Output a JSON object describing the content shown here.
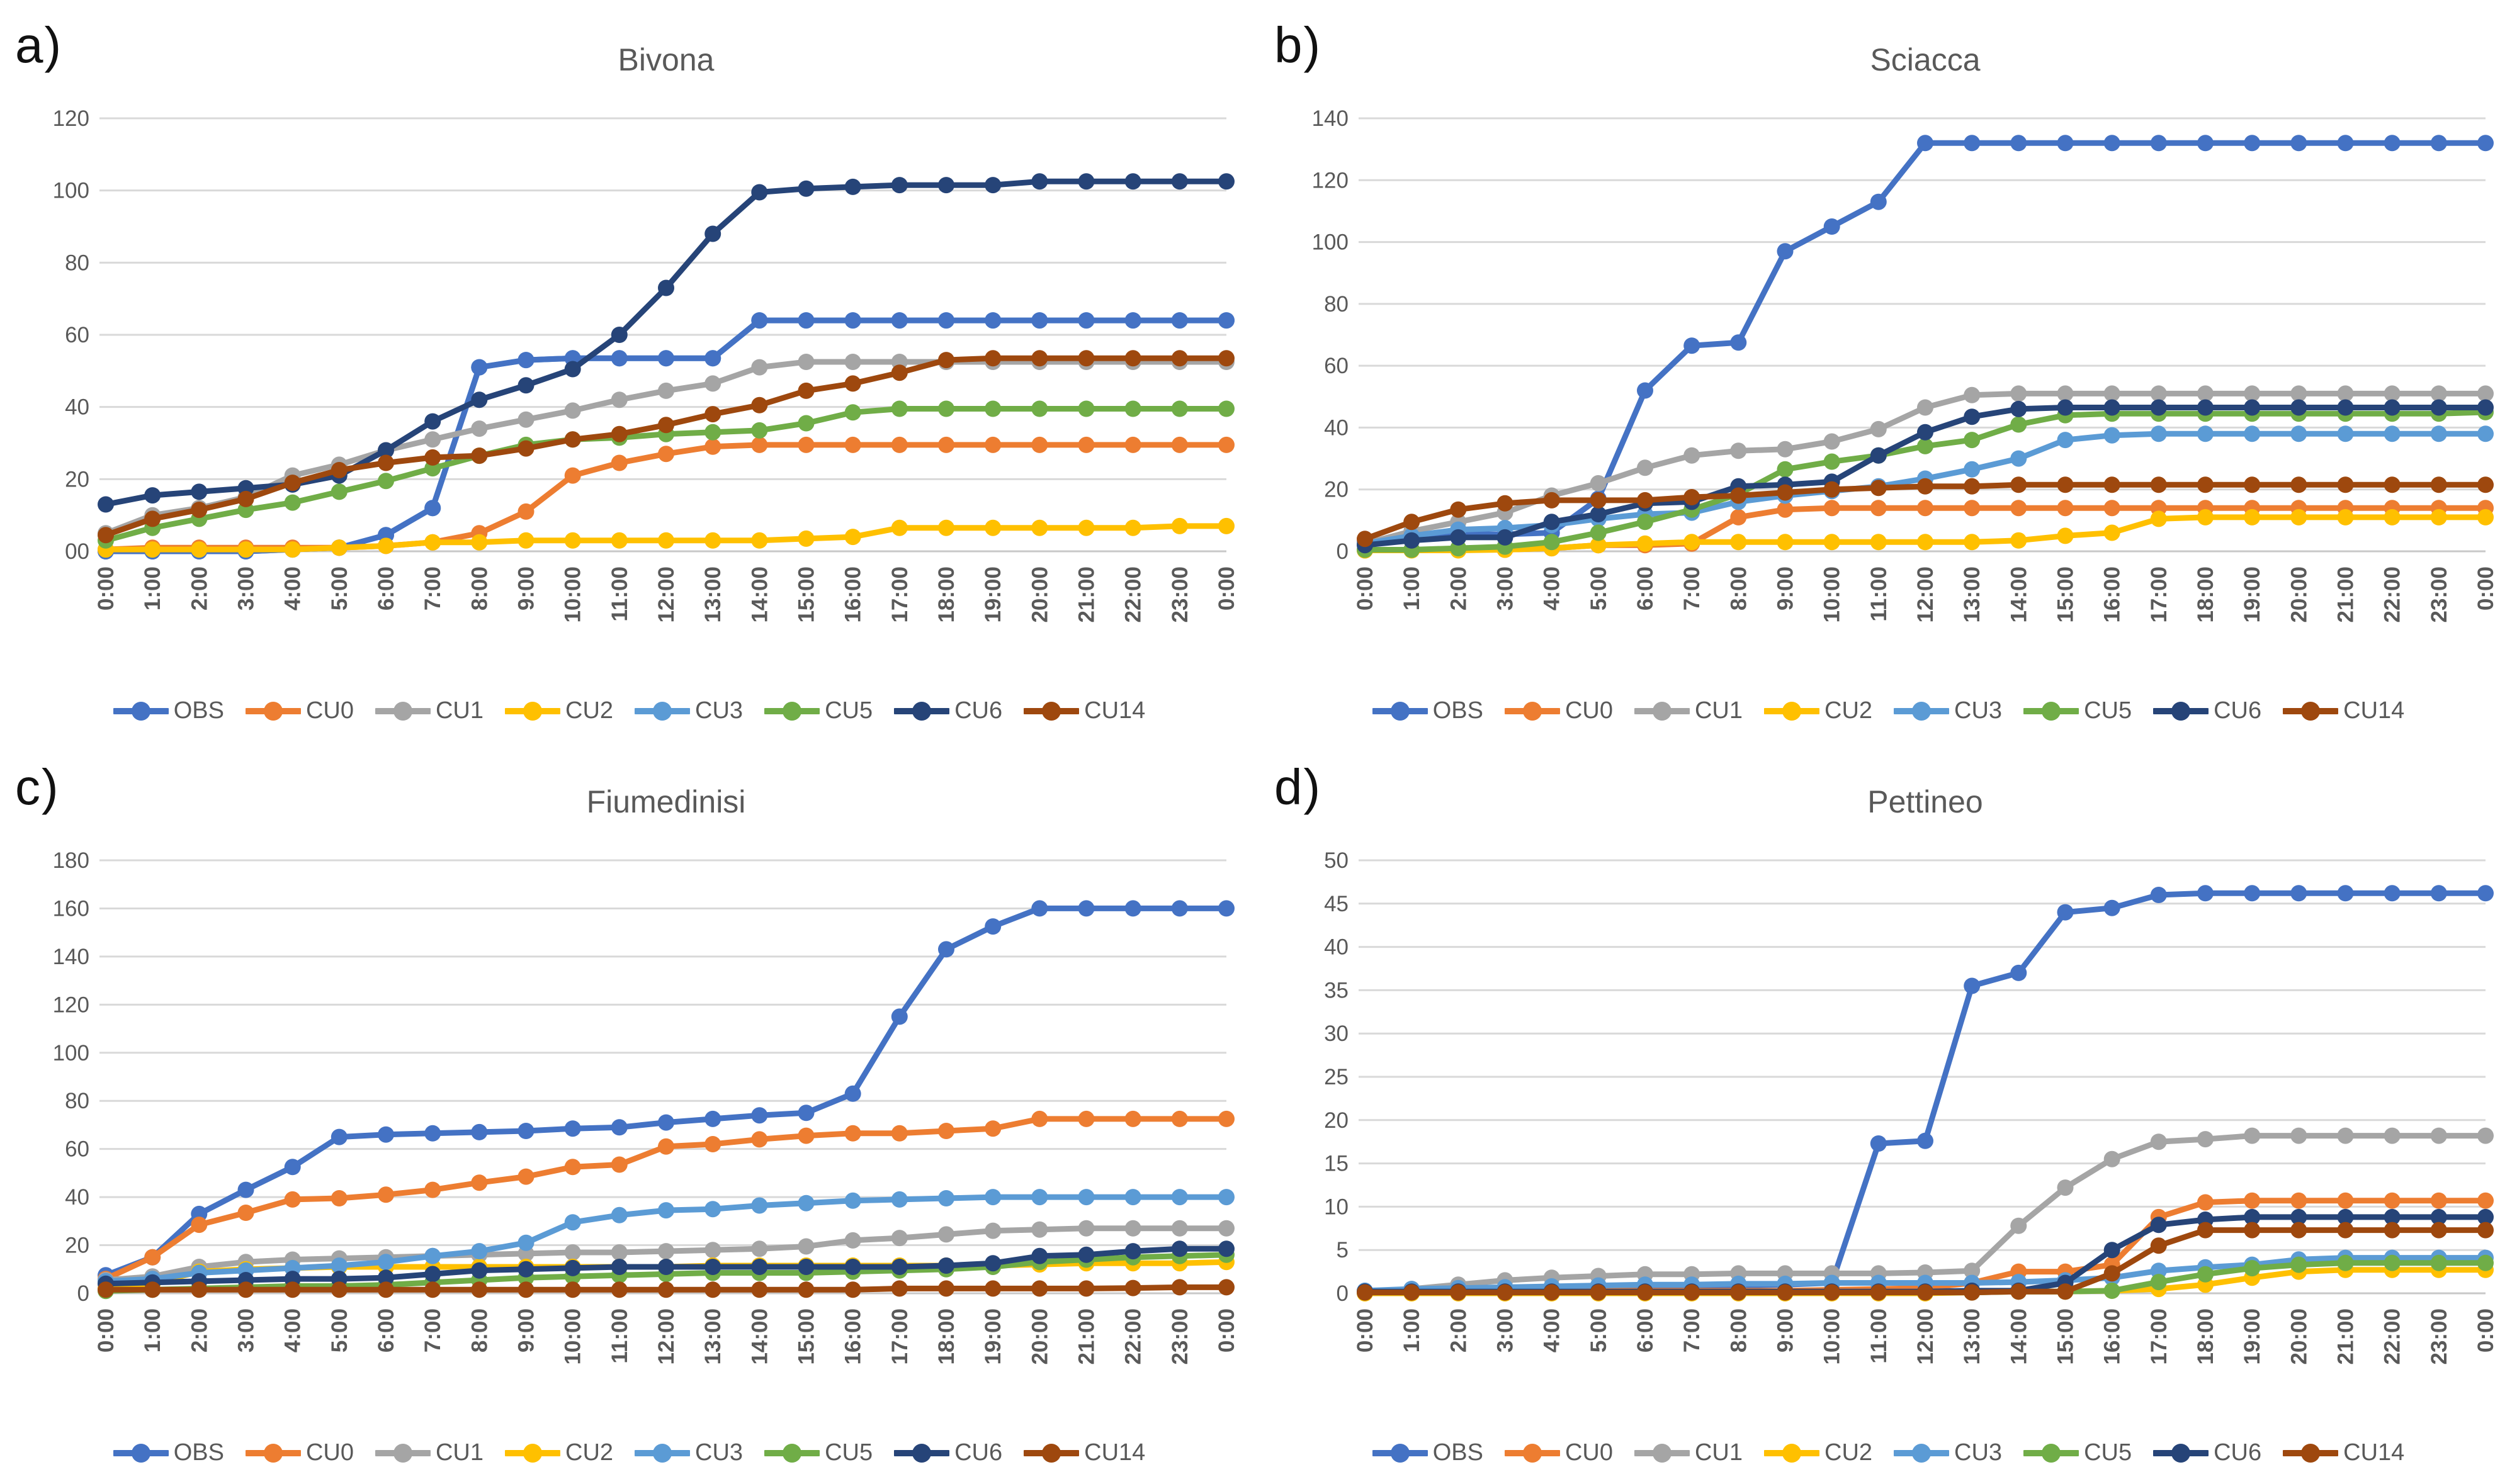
{
  "figure": {
    "background": "#FFFFFF"
  },
  "series_meta": [
    {
      "key": "OBS",
      "label": "OBS",
      "color": "#4472C4"
    },
    {
      "key": "CU0",
      "label": "CU0",
      "color": "#ED7D31"
    },
    {
      "key": "CU1",
      "label": "CU1",
      "color": "#A5A5A5"
    },
    {
      "key": "CU2",
      "label": "CU2",
      "color": "#FFC000"
    },
    {
      "key": "CU3",
      "label": "CU3",
      "color": "#5B9BD5"
    },
    {
      "key": "CU5",
      "label": "CU5",
      "color": "#70AD47"
    },
    {
      "key": "CU6",
      "label": "CU6",
      "color": "#264478"
    },
    {
      "key": "CU14",
      "label": "CU14",
      "color": "#9E480E"
    }
  ],
  "chart_data": [
    {
      "panel_label": "a)",
      "title": "Bivona",
      "type": "line",
      "grid": "horizontal",
      "legend_position": "bottom",
      "x_labels": [
        "0:00",
        "1:00",
        "2:00",
        "3:00",
        "4:00",
        "5:00",
        "6:00",
        "7:00",
        "8:00",
        "9:00",
        "10:00",
        "11:00",
        "12:00",
        "13:00",
        "14:00",
        "15:00",
        "16:00",
        "17:00",
        "18:00",
        "19:00",
        "20:00",
        "21:00",
        "22:00",
        "23:00",
        "0:00"
      ],
      "y_tick_labels": [
        "00",
        "20",
        "40",
        "60",
        "80",
        "100",
        "120"
      ],
      "ylim": [
        0,
        120
      ],
      "draw_order": [
        "CU3",
        "OBS",
        "CU0",
        "CU1",
        "CU2",
        "CU5",
        "CU6",
        "CU14"
      ],
      "series": {
        "OBS": [
          0,
          0,
          0,
          0,
          0.5,
          1,
          4.5,
          12,
          51,
          53,
          53.5,
          53.5,
          53.5,
          53.5,
          64,
          64,
          64,
          64,
          64,
          64,
          64,
          64,
          64,
          64,
          64
        ],
        "CU0": [
          0.5,
          1,
          1,
          1,
          1,
          1,
          1.5,
          2.5,
          5,
          11,
          21,
          24.5,
          27,
          29,
          29.5,
          29.5,
          29.5,
          29.5,
          29.5,
          29.5,
          29.5,
          29.5,
          29.5,
          29.5,
          29.5
        ],
        "CU1": [
          5,
          10,
          12,
          15,
          21,
          24,
          28,
          31,
          34,
          36.5,
          39,
          42,
          44.5,
          46.5,
          51,
          52.5,
          52.5,
          52.5,
          52.5,
          52.5,
          52.5,
          52.5,
          52.5,
          52.5,
          52.5
        ],
        "CU2": [
          0.5,
          0.5,
          0.5,
          0.5,
          0.5,
          1,
          1.5,
          2.5,
          2.5,
          3,
          3,
          3,
          3,
          3,
          3,
          3.5,
          4,
          6.5,
          6.5,
          6.5,
          6.5,
          6.5,
          6.5,
          7,
          7
        ],
        "CU3": [
          0,
          0,
          0,
          0,
          0.5,
          1,
          4.5,
          12,
          51,
          53,
          53.5,
          53.5,
          53.5,
          53.5,
          64,
          64,
          64,
          64,
          64,
          64,
          64,
          64,
          64,
          64,
          64
        ],
        "CU5": [
          3,
          6.5,
          9,
          11.5,
          13.5,
          16.5,
          19.5,
          23,
          26.5,
          29.5,
          31,
          31.5,
          32.5,
          33,
          33.5,
          35.5,
          38.5,
          39.5,
          39.5,
          39.5,
          39.5,
          39.5,
          39.5,
          39.5,
          39.5
        ],
        "CU6": [
          13,
          15.5,
          16.5,
          17.5,
          18.5,
          21,
          28,
          36,
          42,
          46,
          50.5,
          60,
          73,
          88,
          99.5,
          100.5,
          101,
          101.5,
          101.5,
          101.5,
          102.5,
          102.5,
          102.5,
          102.5,
          102.5
        ],
        "CU14": [
          4.5,
          9,
          11.5,
          14.5,
          19,
          22.5,
          24.5,
          26,
          26.5,
          28.5,
          31,
          32.5,
          35,
          38,
          40.5,
          44.5,
          46.5,
          49.5,
          53,
          53.5,
          53.5,
          53.5,
          53.5,
          53.5,
          53.5
        ]
      }
    },
    {
      "panel_label": "b)",
      "title": "Sciacca",
      "type": "line",
      "grid": "horizontal",
      "legend_position": "bottom",
      "x_labels": [
        "0:00",
        "1:00",
        "2:00",
        "3:00",
        "4:00",
        "5:00",
        "6:00",
        "7:00",
        "8:00",
        "9:00",
        "10:00",
        "11:00",
        "12:00",
        "13:00",
        "14:00",
        "15:00",
        "16:00",
        "17:00",
        "18:00",
        "19:00",
        "20:00",
        "21:00",
        "22:00",
        "23:00",
        "0:00"
      ],
      "y_tick_labels": [
        "0",
        "20",
        "40",
        "60",
        "80",
        "100",
        "120",
        "140"
      ],
      "ylim": [
        0,
        140
      ],
      "draw_order": [
        "OBS",
        "CU0",
        "CU1",
        "CU2",
        "CU3",
        "CU5",
        "CU6",
        "CU14"
      ],
      "series": {
        "OBS": [
          3,
          4,
          5.5,
          5.5,
          6,
          17,
          52,
          66.5,
          67.5,
          97,
          105,
          113,
          132,
          132,
          132,
          132,
          132,
          132,
          132,
          132,
          132,
          132,
          132,
          132,
          132
        ],
        "CU0": [
          0.3,
          0.5,
          0.5,
          0.5,
          1,
          2,
          2,
          2.5,
          11,
          13.5,
          14,
          14,
          14,
          14,
          14,
          14,
          14,
          14,
          14,
          14,
          14,
          14,
          14,
          14,
          14
        ],
        "CU1": [
          2.5,
          6.5,
          9.5,
          12.5,
          18,
          22,
          27,
          31,
          32.5,
          33,
          35.5,
          39.5,
          46.5,
          50.5,
          51,
          51,
          51,
          51,
          51,
          51,
          51,
          51,
          51,
          51,
          51
        ],
        "CU2": [
          0.3,
          0.3,
          0.3,
          0.5,
          1,
          2,
          2.5,
          3,
          3,
          3,
          3,
          3,
          3,
          3,
          3.5,
          5,
          6,
          10.5,
          11,
          11,
          11,
          11,
          11,
          11,
          11
        ],
        "CU3": [
          2.5,
          5,
          7,
          7.5,
          8.5,
          10.5,
          12,
          12.5,
          16,
          18,
          19.5,
          21,
          23.5,
          26.5,
          30,
          36,
          37.5,
          38,
          38,
          38,
          38,
          38,
          38,
          38,
          38
        ],
        "CU5": [
          0.5,
          0.5,
          1,
          1.5,
          3,
          6,
          9.5,
          13.5,
          18.5,
          26.5,
          29,
          31,
          34,
          36,
          41,
          44,
          44.5,
          44.5,
          44.5,
          44.5,
          44.5,
          44.5,
          44.5,
          44.5,
          45
        ],
        "CU6": [
          2,
          3.5,
          4.5,
          4.5,
          9.5,
          12,
          15.5,
          16,
          21,
          21.5,
          22.5,
          31,
          38.5,
          43.5,
          46,
          46.5,
          46.5,
          46.5,
          46.5,
          46.5,
          46.5,
          46.5,
          46.5,
          46.5,
          46.5
        ],
        "CU14": [
          4,
          9.5,
          13.5,
          15.5,
          16.5,
          16.5,
          16.5,
          17.5,
          18,
          19,
          20,
          20.5,
          21,
          21,
          21.5,
          21.5,
          21.5,
          21.5,
          21.5,
          21.5,
          21.5,
          21.5,
          21.5,
          21.5,
          21.5
        ]
      }
    },
    {
      "panel_label": "c)",
      "title": "Fiumedinisi",
      "type": "line",
      "grid": "horizontal",
      "legend_position": "bottom",
      "x_labels": [
        "0:00",
        "1:00",
        "2:00",
        "3:00",
        "4:00",
        "5:00",
        "6:00",
        "7:00",
        "8:00",
        "9:00",
        "10:00",
        "11:00",
        "12:00",
        "13:00",
        "14:00",
        "15:00",
        "16:00",
        "17:00",
        "18:00",
        "19:00",
        "20:00",
        "21:00",
        "22:00",
        "23:00",
        "0:00"
      ],
      "y_tick_labels": [
        "0",
        "20",
        "40",
        "60",
        "80",
        "100",
        "120",
        "140",
        "160",
        "180"
      ],
      "ylim": [
        0,
        180
      ],
      "draw_order": [
        "OBS",
        "CU0",
        "CU1",
        "CU2",
        "CU3",
        "CU5",
        "CU6",
        "CU14"
      ],
      "series": {
        "OBS": [
          7.5,
          15,
          33,
          43,
          52.5,
          65,
          66,
          66.5,
          67,
          67.5,
          68.5,
          69,
          71,
          72.5,
          74,
          75,
          83,
          115,
          143,
          152.5,
          160,
          160,
          160,
          160,
          160
        ],
        "CU0": [
          6,
          15,
          28.5,
          33.5,
          39,
          39.5,
          41,
          43,
          46,
          48.5,
          52.5,
          53.5,
          61,
          62,
          64,
          65.5,
          66.5,
          66.5,
          67.5,
          68.5,
          72.5,
          72.5,
          72.5,
          72.5,
          72.5
        ],
        "CU1": [
          5.5,
          7,
          11,
          13,
          14,
          14.5,
          15,
          15.5,
          16,
          16.5,
          17,
          17,
          17.5,
          18,
          18.5,
          19.5,
          22,
          23,
          24.5,
          26,
          26.5,
          27,
          27,
          27,
          27
        ],
        "CU2": [
          2,
          4,
          9,
          10,
          10.5,
          11,
          11,
          11,
          11,
          11,
          11,
          11,
          11,
          11.5,
          11.5,
          11.5,
          11.5,
          11.5,
          11.5,
          11.5,
          12,
          12.5,
          12.5,
          12.5,
          13
        ],
        "CU3": [
          5,
          6,
          8.5,
          9.5,
          10.5,
          11.5,
          13,
          15.5,
          17.5,
          21,
          29.5,
          32.5,
          34.5,
          35,
          36.5,
          37.5,
          38.5,
          39,
          39.5,
          40,
          40,
          40,
          40,
          40,
          40
        ],
        "CU5": [
          1,
          1.5,
          2,
          2.5,
          3,
          3,
          3.5,
          4.5,
          5.5,
          6.5,
          7,
          7.5,
          8,
          8.5,
          8.5,
          8.5,
          9,
          9.5,
          10,
          11,
          13,
          14,
          15,
          15.5,
          16
        ],
        "CU6": [
          4,
          4.5,
          5,
          5.5,
          6,
          6,
          6.5,
          8,
          9.5,
          10,
          10.5,
          11,
          11,
          11,
          11,
          11,
          11,
          11,
          11.5,
          12.5,
          15.5,
          16,
          17.5,
          18.5,
          18.5
        ],
        "CU14": [
          1.5,
          1.5,
          1.5,
          1.5,
          1.5,
          1.5,
          1.5,
          1.5,
          1.5,
          1.5,
          1.5,
          1.5,
          1.5,
          1.5,
          1.5,
          1.5,
          1.5,
          2,
          2,
          2,
          2,
          2,
          2.2,
          2.5,
          2.5
        ]
      }
    },
    {
      "panel_label": "d)",
      "title": "Pettineo",
      "type": "line",
      "grid": "horizontal",
      "legend_position": "bottom",
      "x_labels": [
        "0:00",
        "1:00",
        "2:00",
        "3:00",
        "4:00",
        "5:00",
        "6:00",
        "7:00",
        "8:00",
        "9:00",
        "10:00",
        "11:00",
        "12:00",
        "13:00",
        "14:00",
        "15:00",
        "16:00",
        "17:00",
        "18:00",
        "19:00",
        "20:00",
        "21:00",
        "22:00",
        "23:00",
        "0:00"
      ],
      "y_tick_labels": [
        "0",
        "5",
        "10",
        "15",
        "20",
        "25",
        "30",
        "35",
        "40",
        "45",
        "50"
      ],
      "ylim": [
        0,
        50
      ],
      "draw_order": [
        "OBS",
        "CU0",
        "CU1",
        "CU2",
        "CU3",
        "CU5",
        "CU6",
        "CU14"
      ],
      "series": {
        "OBS": [
          0.2,
          0.3,
          0.3,
          0.4,
          0.5,
          0.6,
          0.7,
          0.8,
          0.9,
          1,
          1.2,
          17.3,
          17.6,
          35.5,
          37,
          44,
          44.5,
          46,
          46.2,
          46.2,
          46.2,
          46.2,
          46.2,
          46.2,
          46.2
        ],
        "CU0": [
          0.2,
          0.2,
          0.2,
          0.2,
          0.2,
          0.3,
          0.3,
          0.3,
          0.3,
          0.3,
          0.4,
          0.5,
          0.6,
          1.2,
          2.5,
          2.5,
          3.3,
          8.8,
          10.5,
          10.7,
          10.7,
          10.7,
          10.7,
          10.7,
          10.7
        ],
        "CU1": [
          0.2,
          0.5,
          1,
          1.5,
          1.8,
          2,
          2.2,
          2.2,
          2.3,
          2.3,
          2.3,
          2.3,
          2.4,
          2.6,
          7.8,
          12.2,
          15.5,
          17.5,
          17.8,
          18.2,
          18.2,
          18.2,
          18.2,
          18.2,
          18.2
        ],
        "CU2": [
          0,
          0,
          0,
          0,
          0,
          0,
          0,
          0,
          0,
          0,
          0,
          0,
          0,
          0.1,
          0.2,
          0.2,
          0.3,
          0.5,
          1,
          1.8,
          2.5,
          2.7,
          2.7,
          2.7,
          2.7
        ],
        "CU3": [
          0.3,
          0.5,
          0.6,
          0.7,
          0.8,
          0.9,
          1,
          1,
          1.1,
          1.1,
          1.2,
          1.2,
          1.2,
          1.2,
          1.3,
          1.5,
          1.8,
          2.6,
          3,
          3.3,
          3.9,
          4.1,
          4.1,
          4.1,
          4.1
        ],
        "CU5": [
          0.1,
          0.1,
          0.1,
          0.1,
          0.1,
          0.1,
          0.1,
          0.1,
          0.1,
          0.1,
          0.1,
          0.1,
          0.1,
          0.1,
          0.2,
          0.2,
          0.3,
          1.3,
          2.2,
          2.9,
          3.3,
          3.5,
          3.5,
          3.5,
          3.5
        ],
        "CU6": [
          0.2,
          0.2,
          0.2,
          0.2,
          0.2,
          0.2,
          0.2,
          0.2,
          0.2,
          0.2,
          0.2,
          0.2,
          0.2,
          0.3,
          0.3,
          1.2,
          5,
          7.9,
          8.5,
          8.8,
          8.8,
          8.8,
          8.8,
          8.8,
          8.8
        ],
        "CU14": [
          0.1,
          0.1,
          0.1,
          0.1,
          0.1,
          0.1,
          0.1,
          0.1,
          0.1,
          0.1,
          0.1,
          0.1,
          0.1,
          0.1,
          0.2,
          0.2,
          2.3,
          5.5,
          7.3,
          7.3,
          7.3,
          7.3,
          7.3,
          7.3,
          7.3
        ]
      }
    }
  ]
}
